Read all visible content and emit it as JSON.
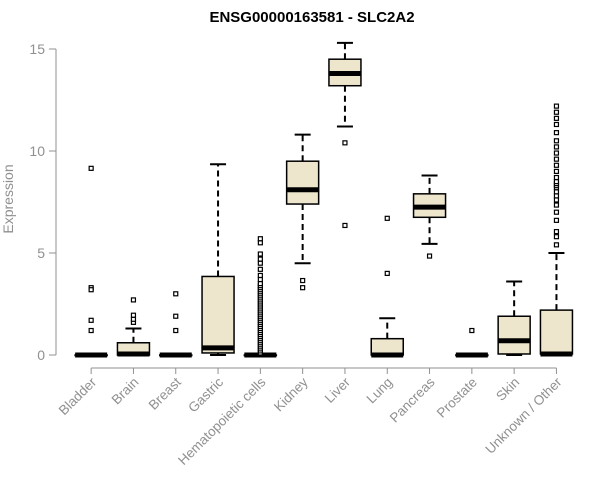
{
  "chart_data": {
    "type": "boxplot",
    "title": "ENSG00000163581 - SLC2A2",
    "xlabel": "",
    "ylabel": "Expression",
    "ylim": [
      0,
      15
    ],
    "yticks": [
      0,
      5,
      10,
      15
    ],
    "colors": {
      "box_fill": "#ede6cd",
      "stroke": "#000000",
      "axis": "#909090",
      "axis_text": "#909090",
      "title": "#000000"
    },
    "categories": [
      "Bladder",
      "Brain",
      "Breast",
      "Gastric",
      "Hematopoietic cells",
      "Kidney",
      "Liver",
      "Lung",
      "Pancreas",
      "Prostate",
      "Skin",
      "Unknown / Other"
    ],
    "boxes": [
      {
        "name": "Bladder",
        "low": 0,
        "q1": 0,
        "median": 0,
        "q3": 0,
        "high": 0,
        "outliers": [
          9.15,
          3.3,
          3.2,
          1.7,
          1.2
        ]
      },
      {
        "name": "Brain",
        "low": 0,
        "q1": 0,
        "median": 0.05,
        "q3": 0.6,
        "high": 1.3,
        "outliers": [
          1.6,
          1.75,
          1.95,
          2.7
        ]
      },
      {
        "name": "Breast",
        "low": 0,
        "q1": 0,
        "median": 0,
        "q3": 0,
        "high": 0,
        "outliers": [
          1.2,
          1.9,
          3.0
        ]
      },
      {
        "name": "Gastric",
        "low": 0,
        "q1": 0.1,
        "median": 0.35,
        "q3": 3.85,
        "high": 9.35,
        "outliers": []
      },
      {
        "name": "Hematopoietic cells",
        "low": 0,
        "q1": 0,
        "median": 0,
        "q3": 0,
        "high": 0,
        "outliers": [
          0.1,
          0.2,
          0.3,
          0.4,
          0.5,
          0.6,
          0.7,
          0.8,
          0.9,
          1.0,
          1.1,
          1.2,
          1.3,
          1.4,
          1.5,
          1.6,
          1.7,
          1.8,
          1.9,
          2.0,
          2.1,
          2.2,
          2.3,
          2.4,
          2.5,
          2.6,
          2.7,
          2.8,
          2.9,
          3.0,
          3.1,
          3.2,
          3.3,
          3.4,
          3.5,
          3.7,
          3.9,
          4.2,
          4.5,
          4.7,
          4.95,
          5.5,
          5.7
        ]
      },
      {
        "name": "Kidney",
        "low": 4.5,
        "q1": 7.4,
        "median": 8.1,
        "q3": 9.5,
        "high": 10.8,
        "outliers": [
          3.3,
          3.65
        ]
      },
      {
        "name": "Liver",
        "low": 11.2,
        "q1": 13.2,
        "median": 13.8,
        "q3": 14.5,
        "high": 15.3,
        "outliers": [
          6.35,
          10.4
        ]
      },
      {
        "name": "Lung",
        "low": 0,
        "q1": 0,
        "median": 0,
        "q3": 0.8,
        "high": 1.8,
        "outliers": [
          4.0,
          6.7
        ]
      },
      {
        "name": "Pancreas",
        "low": 5.45,
        "q1": 6.75,
        "median": 7.25,
        "q3": 7.9,
        "high": 8.8,
        "outliers": [
          4.85
        ]
      },
      {
        "name": "Prostate",
        "low": 0,
        "q1": 0,
        "median": 0,
        "q3": 0,
        "high": 0,
        "outliers": [
          1.2
        ]
      },
      {
        "name": "Skin",
        "low": 0,
        "q1": 0.05,
        "median": 0.7,
        "q3": 1.9,
        "high": 3.6,
        "outliers": []
      },
      {
        "name": "Unknown / Other",
        "low": 0,
        "q1": 0.05,
        "median": 0.05,
        "q3": 2.2,
        "high": 5.0,
        "outliers": [
          5.4,
          5.8,
          6.05,
          6.6,
          7.0,
          7.35,
          7.6,
          7.8,
          8.0,
          8.2,
          8.3,
          8.4,
          8.5,
          8.7,
          9.0,
          9.3,
          9.6,
          9.9,
          10.2,
          10.5,
          10.9,
          11.3,
          11.6,
          11.9,
          12.2
        ]
      }
    ]
  }
}
